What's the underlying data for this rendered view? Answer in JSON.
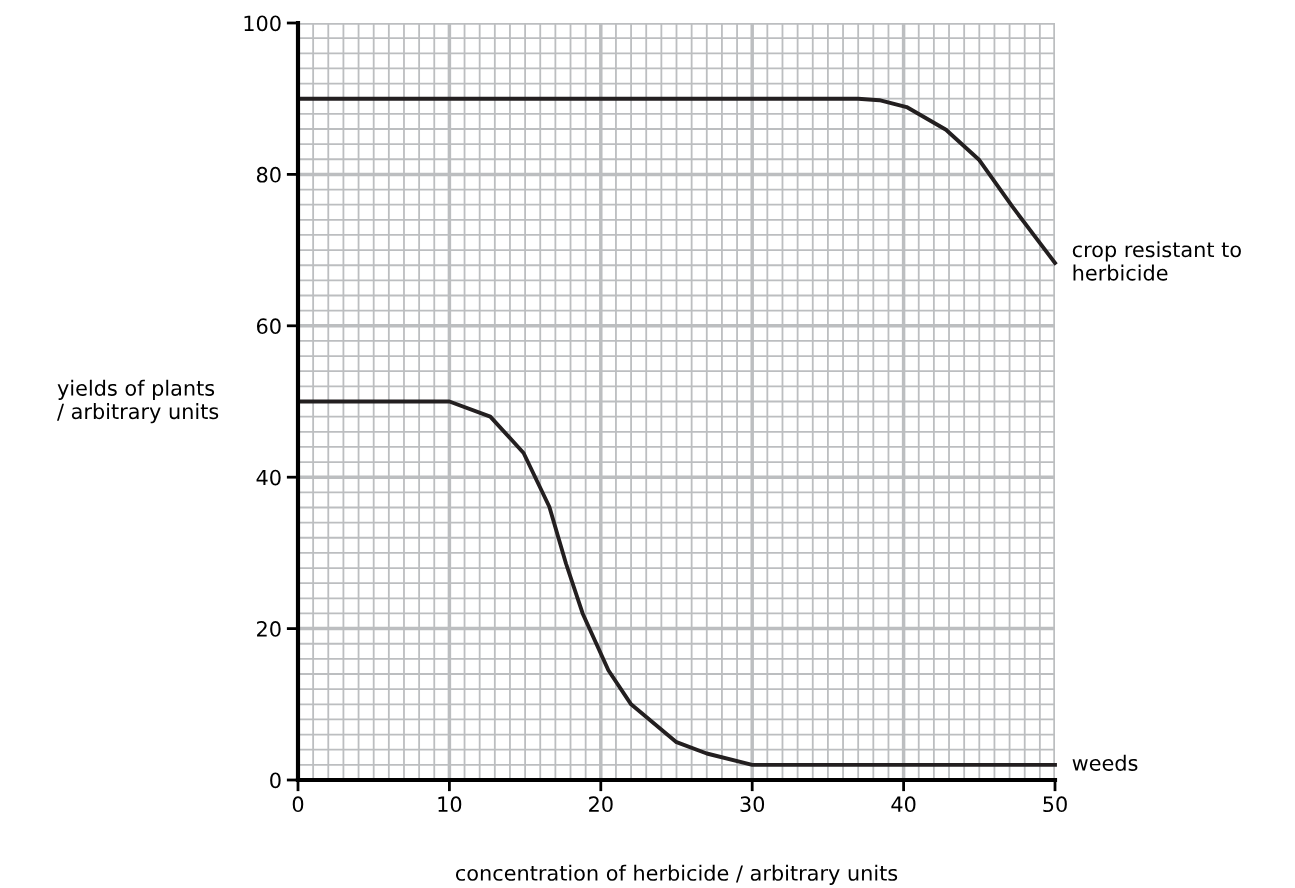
{
  "chart_data": {
    "type": "line",
    "xlabel": "concentration of herbicide / arbitrary units",
    "ylabel": "yields of plants\n/ arbitrary units",
    "xlim": [
      0,
      50
    ],
    "ylim": [
      0,
      100
    ],
    "xticks": [
      0,
      10,
      20,
      30,
      40,
      50
    ],
    "yticks": [
      0,
      20,
      40,
      60,
      80,
      100
    ],
    "grid": true,
    "legend": false,
    "marker": "none",
    "line_style": "solid",
    "series": [
      {
        "name": "crop resistant to\nherbicide",
        "color": "#231f20",
        "x": [
          0,
          10,
          20,
          30,
          37,
          38.4,
          40.2,
          42.8,
          45,
          47.2,
          50
        ],
        "values": [
          90,
          90,
          90,
          90,
          90,
          89.8,
          88.9,
          85.9,
          81.9,
          75.7,
          68.3
        ]
      },
      {
        "name": "weeds",
        "color": "#231f20",
        "x": [
          0,
          5,
          9.5,
          10,
          12.7,
          14.9,
          16.6,
          17.7,
          18.8,
          20.5,
          22,
          25,
          27,
          30,
          40,
          50
        ],
        "values": [
          50,
          50,
          50,
          50,
          48,
          43.2,
          36.1,
          28.6,
          22,
          14.5,
          10,
          5,
          3.5,
          2,
          2,
          2
        ]
      }
    ]
  }
}
